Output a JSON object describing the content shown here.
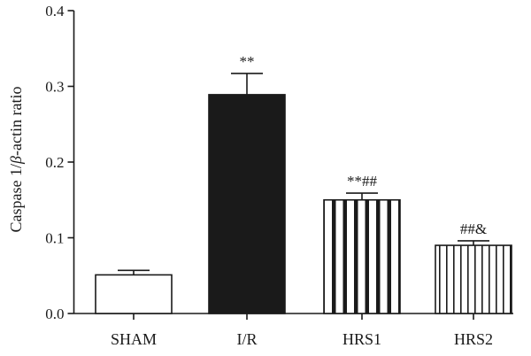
{
  "chart_data": {
    "type": "bar",
    "title": "",
    "xlabel": "",
    "ylabel_prefix": "Caspase 1/",
    "ylabel_beta": "β",
    "ylabel_suffix": "-actin ratio",
    "ylim": [
      0,
      0.4
    ],
    "yticks": [
      "0.0",
      "0.1",
      "0.2",
      "0.3",
      "0.4"
    ],
    "grid": false,
    "legend": "none",
    "categories": [
      "SHAM",
      "I/R",
      "HRS1",
      "HRS2"
    ],
    "values": [
      0.051,
      0.289,
      0.15,
      0.09
    ],
    "errors": [
      0.006,
      0.028,
      0.009,
      0.006
    ],
    "fills": [
      "white",
      "solid",
      "thick-stripes",
      "thin-stripes"
    ],
    "annotations": [
      "",
      "**",
      "**##",
      "##&"
    ],
    "colors": {
      "bar": "#1a1a1a",
      "background": "#ffffff"
    }
  }
}
